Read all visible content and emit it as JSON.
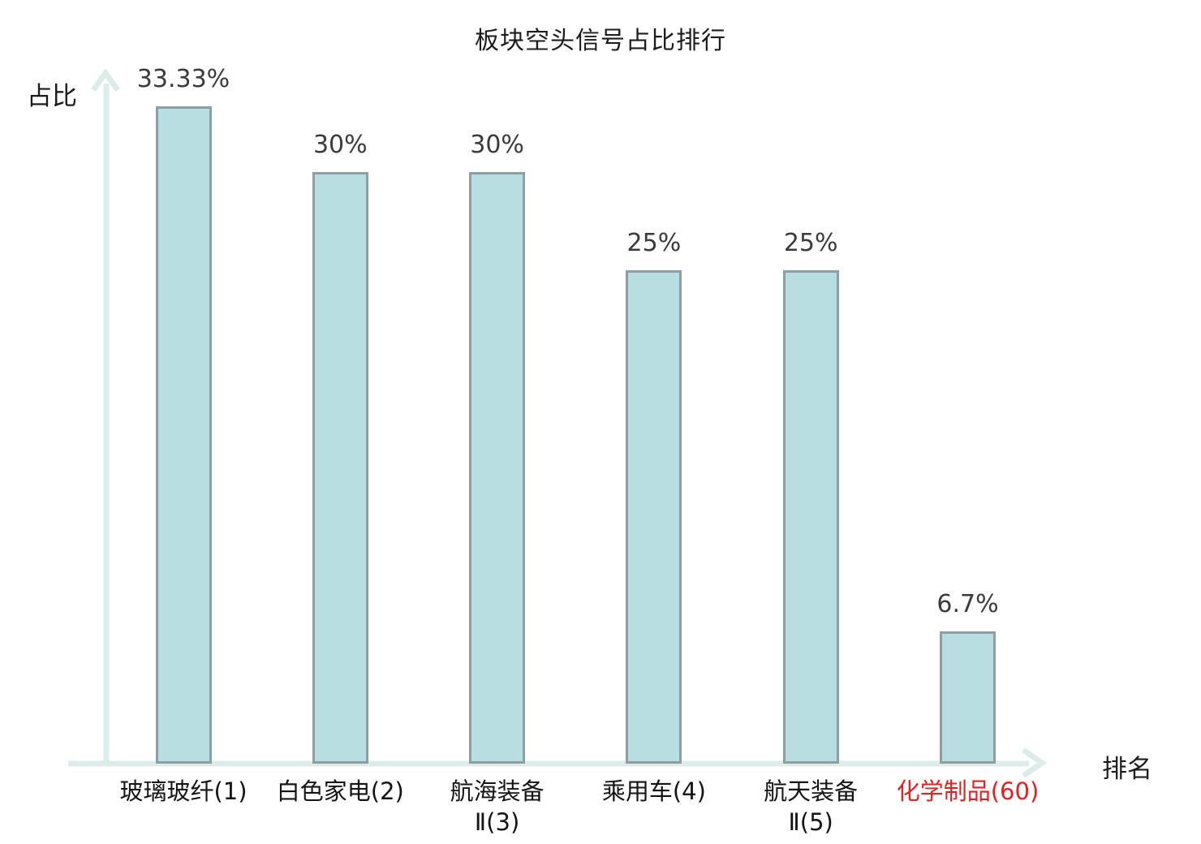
{
  "title": "板块空头信号占比排行",
  "axes": {
    "y_label": "占比",
    "x_label": "排名"
  },
  "chart_data": {
    "type": "bar",
    "title": "板块空头信号占比排行",
    "xlabel": "排名",
    "ylabel": "占比",
    "ylim": [
      0,
      34.6
    ],
    "grid": false,
    "legend": null,
    "categories": [
      "玻璃玻纤(1)",
      "白色家电(2)",
      "航海装备Ⅱ(3)",
      "乘用车(4)",
      "航天装备Ⅱ(5)",
      "化学制品(60)"
    ],
    "values": [
      33.33,
      30,
      30,
      25,
      25,
      6.7
    ],
    "bars": [
      {
        "category_lines": [
          "玻璃玻纤(1)"
        ],
        "value": 33.33,
        "value_label": "33.33%",
        "highlight": false
      },
      {
        "category_lines": [
          "白色家电(2)"
        ],
        "value": 30,
        "value_label": "30%",
        "highlight": false
      },
      {
        "category_lines": [
          "航海装备",
          "Ⅱ(3)"
        ],
        "value": 30,
        "value_label": "30%",
        "highlight": false
      },
      {
        "category_lines": [
          "乘用车(4)"
        ],
        "value": 25,
        "value_label": "25%",
        "highlight": false
      },
      {
        "category_lines": [
          "航天装备",
          "Ⅱ(5)"
        ],
        "value": 25,
        "value_label": "25%",
        "highlight": false
      },
      {
        "category_lines": [
          "化学制品(60)"
        ],
        "value": 6.7,
        "value_label": "6.7%",
        "highlight": true
      }
    ]
  },
  "colors": {
    "bar_fill": "#b9dee2",
    "bar_border": "#8d9fa3",
    "axis": "#dcecea",
    "value_label": "#3b3b3b",
    "category_label": "#141414",
    "highlight_label": "#e52020",
    "title": "#1c1c1c",
    "background": "#ffffff"
  }
}
